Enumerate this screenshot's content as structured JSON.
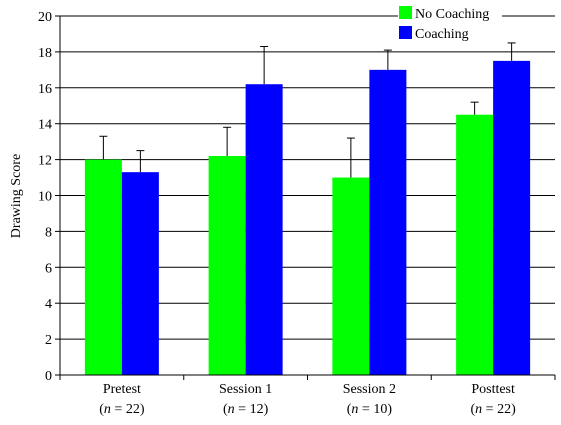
{
  "chart_data": {
    "type": "bar",
    "ylabel": "Drawing Score",
    "xlabel": "",
    "ylim": [
      0,
      20
    ],
    "yticks": [
      0,
      2,
      4,
      6,
      8,
      10,
      12,
      14,
      16,
      18,
      20
    ],
    "grid": "horizontal",
    "legend_position": "top-right",
    "categories": [
      {
        "label": "Pretest",
        "n_prefix": "(",
        "n_var": "n",
        "n_value": " = 22)"
      },
      {
        "label": "Session 1",
        "n_prefix": "(",
        "n_var": "n",
        "n_value": " = 12)"
      },
      {
        "label": "Session 2",
        "n_prefix": "(",
        "n_var": "n",
        "n_value": " = 10)"
      },
      {
        "label": "Posttest",
        "n_prefix": "(",
        "n_var": "n",
        "n_value": " = 22)"
      }
    ],
    "series": [
      {
        "name": "No Coaching",
        "color": "#00ff00",
        "values": [
          12.0,
          12.2,
          11.0,
          14.5
        ],
        "error_upper": [
          13.3,
          13.8,
          13.2,
          15.2
        ]
      },
      {
        "name": "Coaching",
        "color": "#0000ff",
        "values": [
          11.3,
          16.2,
          17.0,
          17.5
        ],
        "error_upper": [
          12.5,
          18.3,
          18.1,
          18.5
        ]
      }
    ]
  }
}
